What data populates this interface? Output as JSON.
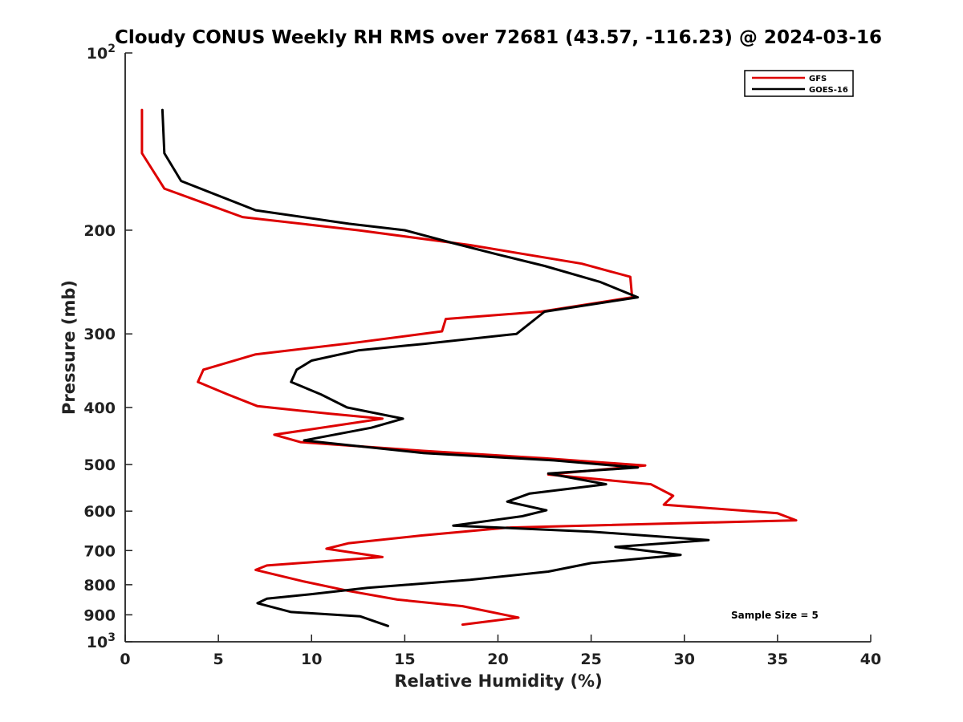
{
  "chart_data": {
    "type": "line",
    "title": "Cloudy CONUS Weekly RH RMS over 72681 (43.57, -116.23) @ 2024-03-16",
    "xlabel": "Relative Humidity (%)",
    "ylabel": "Pressure (mb)",
    "xlim": [
      0,
      40
    ],
    "ylim": [
      100,
      1000
    ],
    "y_scale": "log",
    "y_reversed": true,
    "grid": false,
    "legend_position": "top-right",
    "x_ticks": [
      "0",
      "5",
      "10",
      "15",
      "20",
      "25",
      "30",
      "35",
      "40"
    ],
    "y_ticks": [
      {
        "value": 100,
        "base": "10",
        "exp": "2"
      },
      {
        "value": 200,
        "label": "200"
      },
      {
        "value": 300,
        "label": "300"
      },
      {
        "value": 400,
        "label": "400"
      },
      {
        "value": 500,
        "label": "500"
      },
      {
        "value": 600,
        "label": "600"
      },
      {
        "value": 700,
        "label": "700"
      },
      {
        "value": 800,
        "label": "800"
      },
      {
        "value": 900,
        "label": "900"
      },
      {
        "value": 1000,
        "base": "10",
        "exp": "3"
      }
    ],
    "annotation": "Sample Size = 5",
    "series": [
      {
        "name": "GFS",
        "color": "#dd0000",
        "points": [
          [
            0.9,
            125
          ],
          [
            0.9,
            148
          ],
          [
            2.1,
            170
          ],
          [
            6.3,
            190
          ],
          [
            12.5,
            200
          ],
          [
            18.5,
            212
          ],
          [
            24.5,
            228
          ],
          [
            27.1,
            240
          ],
          [
            27.2,
            260
          ],
          [
            22.3,
            275
          ],
          [
            17.2,
            283
          ],
          [
            17.0,
            297
          ],
          [
            12.5,
            310
          ],
          [
            7.0,
            325
          ],
          [
            4.2,
            345
          ],
          [
            3.9,
            362
          ],
          [
            5.5,
            380
          ],
          [
            7.1,
            398
          ],
          [
            11.0,
            410
          ],
          [
            13.8,
            418
          ],
          [
            8.0,
            445
          ],
          [
            9.4,
            458
          ],
          [
            16.0,
            474
          ],
          [
            22.5,
            488
          ],
          [
            27.9,
            502
          ],
          [
            22.7,
            520
          ],
          [
            28.2,
            540
          ],
          [
            29.4,
            565
          ],
          [
            28.9,
            585
          ],
          [
            35.0,
            605
          ],
          [
            36.0,
            622
          ],
          [
            20.5,
            640
          ],
          [
            15.9,
            660
          ],
          [
            12.0,
            680
          ],
          [
            10.8,
            695
          ],
          [
            13.8,
            718
          ],
          [
            7.6,
            742
          ],
          [
            7.0,
            755
          ],
          [
            9.6,
            790
          ],
          [
            12.0,
            820
          ],
          [
            14.6,
            848
          ],
          [
            18.1,
            870
          ],
          [
            21.1,
            910
          ],
          [
            18.1,
            935
          ]
        ]
      },
      {
        "name": "GOES-16",
        "color": "#000000",
        "points": [
          [
            2.0,
            125
          ],
          [
            2.1,
            148
          ],
          [
            3.0,
            165
          ],
          [
            7.0,
            185
          ],
          [
            12.0,
            195
          ],
          [
            15.0,
            200
          ],
          [
            17.5,
            210
          ],
          [
            20.0,
            220
          ],
          [
            22.5,
            230
          ],
          [
            25.5,
            245
          ],
          [
            27.5,
            260
          ],
          [
            22.5,
            275
          ],
          [
            21.0,
            300
          ],
          [
            16.0,
            312
          ],
          [
            12.5,
            320
          ],
          [
            10.0,
            333
          ],
          [
            9.2,
            345
          ],
          [
            8.9,
            362
          ],
          [
            10.5,
            380
          ],
          [
            11.9,
            400
          ],
          [
            14.9,
            418
          ],
          [
            13.2,
            433
          ],
          [
            9.6,
            455
          ],
          [
            16.0,
            478
          ],
          [
            23.0,
            492
          ],
          [
            27.5,
            506
          ],
          [
            22.7,
            518
          ],
          [
            25.8,
            540
          ],
          [
            21.7,
            560
          ],
          [
            20.5,
            578
          ],
          [
            22.6,
            598
          ],
          [
            21.3,
            612
          ],
          [
            17.6,
            635
          ],
          [
            25.0,
            650
          ],
          [
            31.3,
            672
          ],
          [
            26.3,
            690
          ],
          [
            29.8,
            712
          ],
          [
            25.0,
            735
          ],
          [
            22.7,
            760
          ],
          [
            18.5,
            785
          ],
          [
            13.0,
            810
          ],
          [
            10.0,
            830
          ],
          [
            7.6,
            845
          ],
          [
            7.1,
            860
          ],
          [
            8.9,
            890
          ],
          [
            12.6,
            905
          ],
          [
            14.1,
            940
          ]
        ]
      }
    ]
  }
}
